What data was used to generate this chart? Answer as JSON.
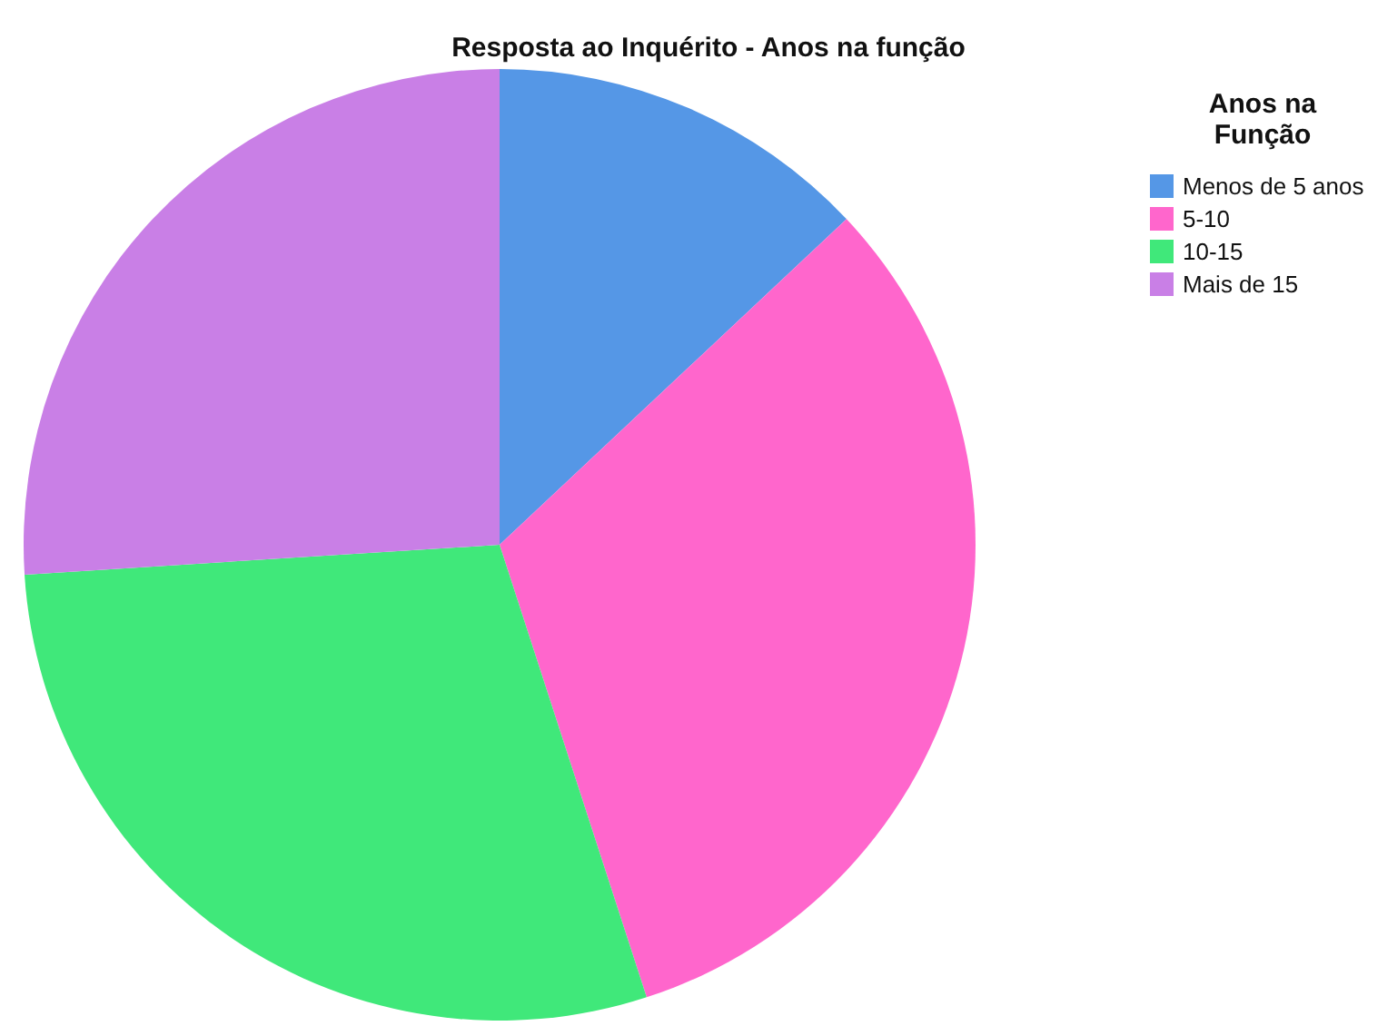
{
  "chart_data": {
    "type": "pie",
    "title": "Resposta ao Inquérito - Anos na função",
    "legend_title": "Anos na Função",
    "legend": "top right",
    "categories": [
      "Menos de 5 anos",
      "5-10",
      "10-15",
      "Mais de 15"
    ],
    "values": [
      13,
      32,
      29,
      26
    ],
    "colors": [
      "#5597e6",
      "#ff66cc",
      "#40e87a",
      "#c97fe6"
    ]
  }
}
